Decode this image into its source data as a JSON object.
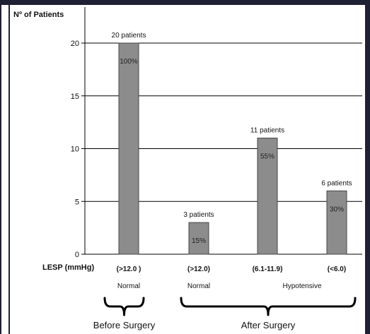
{
  "chart_data": {
    "type": "bar",
    "ylabel": "Nº of Patients",
    "ylim": [
      0,
      20
    ],
    "yticks": [
      0,
      5,
      10,
      15,
      20
    ],
    "grid": true,
    "x_axis_title": "LESP (mmHg)",
    "categories": [
      "(>12.0 )",
      "(>12.0)",
      "(6.1-11.9)",
      "(<6.0)"
    ],
    "values": [
      20,
      3,
      11,
      6
    ],
    "top_labels": [
      "20 patients",
      "3 patients",
      "11 patients",
      "6 patients"
    ],
    "percent_labels": [
      "100%",
      "15%",
      "55%",
      "30%"
    ],
    "subgroups": [
      {
        "label": "Normal",
        "categories": [
          0
        ]
      },
      {
        "label": "Normal",
        "categories": [
          1
        ]
      },
      {
        "label": "Hypotensive",
        "categories": [
          2,
          3
        ]
      }
    ],
    "groups": [
      {
        "label": "Before Surgery",
        "categories": [
          0
        ]
      },
      {
        "label": "After  Surgery",
        "categories": [
          1,
          2,
          3
        ]
      }
    ],
    "colors": {
      "bar_fill": "#8c8c8c",
      "bar_stroke": "#444444",
      "grid": "#000000",
      "frame": "#1f2033"
    }
  }
}
